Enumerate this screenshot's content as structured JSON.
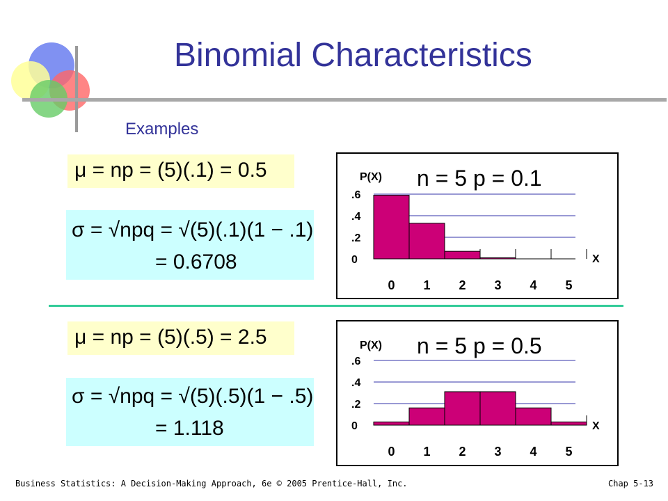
{
  "slide": {
    "title": "Binomial Characteristics",
    "subtitle": "Examples"
  },
  "formulas": {
    "mean1": "μ = np = (5)(.1) = 0.5",
    "sigma1_line1": "σ = √npq = √(5)(.1)(1 − .1)",
    "sigma1_line2": "= 0.6708",
    "mean2": "μ = np = (5)(.5) = 2.5",
    "sigma2_line1": "σ = √npq = √(5)(.5)(1 − .5)",
    "sigma2_line2": "= 1.118"
  },
  "chart_data": [
    {
      "type": "bar",
      "title": "n = 5  p = 0.1",
      "ylabel": "P(X)",
      "xlabel": "X",
      "categories": [
        "0",
        "1",
        "2",
        "3",
        "4",
        "5"
      ],
      "values": [
        0.59,
        0.33,
        0.07,
        0.01,
        0.0,
        0.0
      ],
      "yticks": [
        ".6",
        ".4",
        ".2",
        "0"
      ],
      "ylim": [
        0,
        0.6
      ],
      "bar_color": "#cc0077"
    },
    {
      "type": "bar",
      "title": "n = 5  p = 0.5",
      "ylabel": "P(X)",
      "xlabel": "X",
      "categories": [
        "0",
        "1",
        "2",
        "3",
        "4",
        "5"
      ],
      "values": [
        0.03,
        0.16,
        0.31,
        0.31,
        0.16,
        0.03
      ],
      "yticks": [
        ".6",
        ".4",
        ".2",
        "0"
      ],
      "ylim": [
        0,
        0.6
      ],
      "bar_color": "#cc0077"
    }
  ],
  "footer": {
    "left": "Business Statistics: A Decision-Making Approach, 6e © 2005 Prentice-Hall, Inc.",
    "right": "Chap 5-13"
  },
  "colors": {
    "title": "#333399",
    "accent_teal": "#33cc99",
    "formula_yellow": "#ffffcc",
    "formula_blue": "#ccffff"
  }
}
